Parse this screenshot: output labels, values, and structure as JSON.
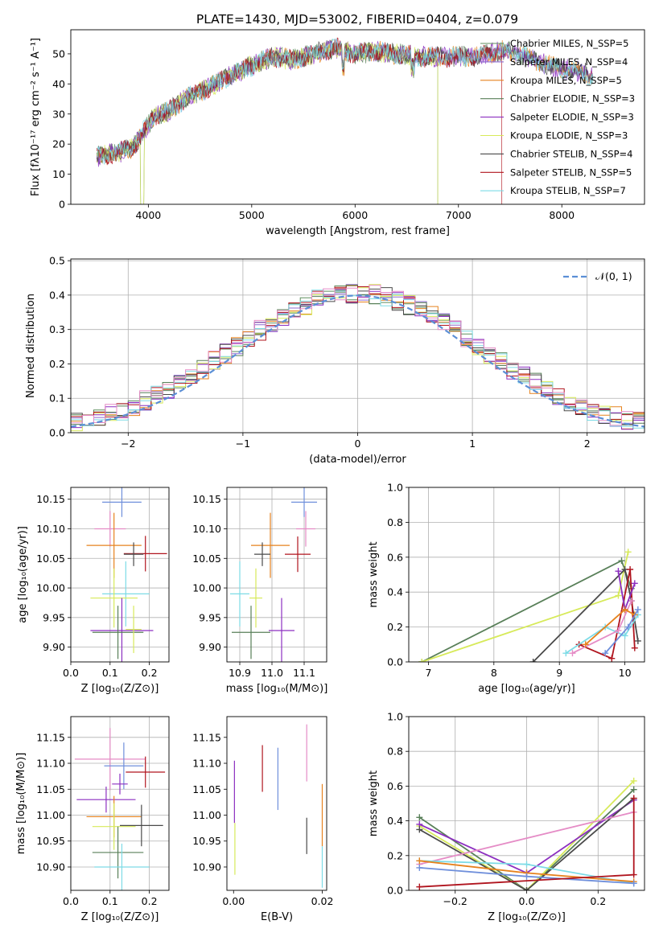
{
  "figure_title": "PLATE=1430, MJD=53002, FIBERID=0404, z=0.079",
  "colors": {
    "cM": "#5f8f5f",
    "sM": "#8d6bd0",
    "kM": "#e6821e",
    "cE": "#587f58",
    "sE": "#8c2fc0",
    "kE": "#d7ea5a",
    "cS": "#4a4a4a",
    "sS": "#b0141e",
    "kS": "#7ddbe6",
    "blue": "#6f8fdb",
    "pink": "#e58cc6",
    "gaussian": "#5b8fd6"
  },
  "chart_data": [
    {
      "type": "line",
      "id": "spectrum",
      "xlabel": "wavelength [Angstrom, rest frame]",
      "ylabel": "Flux [fλ10⁻¹⁷ erg cm⁻² s⁻¹ A⁻¹]",
      "xlim": [
        3250,
        8800
      ],
      "ylim": [
        0,
        58
      ],
      "xticks": [
        4000,
        5000,
        6000,
        7000,
        8000
      ],
      "yticks": [
        0,
        10,
        20,
        30,
        40,
        50
      ],
      "grid": false,
      "legend": "top-right",
      "continuum": {
        "x": [
          3500,
          3700,
          3850,
          3950,
          4050,
          4200,
          4400,
          4600,
          4800,
          5000,
          5200,
          5400,
          5600,
          5800,
          6000,
          6200,
          6400,
          6600,
          6800,
          7000,
          7200,
          7400,
          7600,
          7800,
          8000,
          8200,
          8400
        ],
        "y": [
          16,
          17,
          19,
          24,
          29,
          31,
          36,
          39,
          43,
          46,
          49,
          48,
          50,
          52,
          50,
          51,
          50,
          49,
          49,
          49,
          49,
          51,
          50,
          47,
          45,
          44,
          41
        ]
      },
      "series": [
        {
          "name": "Chabrier MILES, N_SSP=5",
          "color": "cM"
        },
        {
          "name": "Salpeter MILES, N_SSP=4",
          "color": "sM"
        },
        {
          "name": "Kroupa MILES, N_SSP=5",
          "color": "kM"
        },
        {
          "name": "Chabrier ELODIE, N_SSP=3",
          "color": "cE"
        },
        {
          "name": "Salpeter ELODIE, N_SSP=3",
          "color": "sE"
        },
        {
          "name": "Kroupa ELODIE, N_SSP=3",
          "color": "kE"
        },
        {
          "name": "Chabrier STELIB, N_SSP=4",
          "color": "cS"
        },
        {
          "name": "Salpeter STELIB, N_SSP=5",
          "color": "sS"
        },
        {
          "name": "Kroupa STELIB, N_SSP=7",
          "color": "kS"
        }
      ]
    },
    {
      "type": "histogram",
      "id": "residuals",
      "xlabel": "(data-model)/error",
      "ylabel": "Normed distribution",
      "xlim": [
        -2.5,
        2.5
      ],
      "ylim": [
        0,
        0.505
      ],
      "xticks": [
        -2,
        -1,
        0,
        1,
        2
      ],
      "yticks": [
        0.0,
        0.1,
        0.2,
        0.3,
        0.4,
        0.5
      ],
      "grid": true,
      "legend": "top-right",
      "legend_label": "𝒩(0, 1)",
      "bin_width": 0.1
    },
    {
      "type": "errorbar",
      "id": "age_vs_Z",
      "xlabel": "Z [log₁₀(Z/Z⊙)]",
      "ylabel": "age  [log₁₀(age/yr)]",
      "xlim": [
        0.0,
        0.25
      ],
      "ylim": [
        9.875,
        10.17
      ],
      "xticks": [
        0.0,
        0.1,
        0.2
      ],
      "yticks": [
        9.9,
        9.95,
        10.0,
        10.05,
        10.1,
        10.15
      ],
      "grid": true,
      "points": [
        {
          "x": 0.13,
          "xerr": 0.05,
          "y": 10.145,
          "yerr": 0.025,
          "color": "blue"
        },
        {
          "x": 0.1,
          "xerr": 0.04,
          "y": 10.1,
          "yerr": 0.03,
          "color": "pink"
        },
        {
          "x": 0.11,
          "xerr": 0.07,
          "y": 10.072,
          "yerr": 0.055,
          "color": "kM"
        },
        {
          "x": 0.19,
          "xerr": 0.055,
          "y": 10.058,
          "yerr": 0.03,
          "color": "sS"
        },
        {
          "x": 0.16,
          "xerr": 0.025,
          "y": 10.057,
          "yerr": 0.02,
          "color": "cS"
        },
        {
          "x": 0.14,
          "xerr": 0.06,
          "y": 9.99,
          "yerr": 0.055,
          "color": "kS"
        },
        {
          "x": 0.11,
          "xerr": 0.06,
          "y": 9.983,
          "yerr": 0.05,
          "color": "kE"
        },
        {
          "x": 0.13,
          "xerr": 0.08,
          "y": 9.928,
          "yerr": 0.055,
          "color": "sE"
        },
        {
          "x": 0.12,
          "xerr": 0.065,
          "y": 9.925,
          "yerr": 0.045,
          "color": "cE"
        },
        {
          "x": 0.16,
          "xerr": 0.02,
          "y": 9.93,
          "yerr": 0.04,
          "color": "kE"
        }
      ]
    },
    {
      "type": "errorbar",
      "id": "age_vs_mass",
      "xlabel": "mass [log₁₀(M/M⊙)]",
      "ylabel": "",
      "xlim": [
        10.86,
        11.17
      ],
      "ylim": [
        9.875,
        10.17
      ],
      "xticks": [
        10.9,
        11.0,
        11.1
      ],
      "yticks": [
        9.9,
        9.95,
        10.0,
        10.05,
        10.1,
        10.15
      ],
      "grid": true,
      "points": [
        {
          "x": 11.1,
          "xerr": 0.04,
          "y": 10.145,
          "yerr": 0.025,
          "color": "blue"
        },
        {
          "x": 11.105,
          "xerr": 0.03,
          "y": 10.1,
          "yerr": 0.03,
          "color": "pink"
        },
        {
          "x": 10.995,
          "xerr": 0.06,
          "y": 10.072,
          "yerr": 0.055,
          "color": "kM"
        },
        {
          "x": 11.08,
          "xerr": 0.04,
          "y": 10.057,
          "yerr": 0.03,
          "color": "sS"
        },
        {
          "x": 10.97,
          "xerr": 0.025,
          "y": 10.057,
          "yerr": 0.02,
          "color": "cS"
        },
        {
          "x": 10.9,
          "xerr": 0.03,
          "y": 9.99,
          "yerr": 0.055,
          "color": "kS"
        },
        {
          "x": 10.95,
          "xerr": 0.02,
          "y": 9.983,
          "yerr": 0.05,
          "color": "kE"
        },
        {
          "x": 11.03,
          "xerr": 0.04,
          "y": 9.928,
          "yerr": 0.055,
          "color": "sE"
        },
        {
          "x": 10.935,
          "xerr": 0.06,
          "y": 9.925,
          "yerr": 0.045,
          "color": "cE"
        }
      ]
    },
    {
      "type": "line",
      "id": "mass_weight_vs_age",
      "xlabel": "age  [log₁₀(age/yr)]",
      "ylabel": "mass weight",
      "xlim": [
        6.7,
        10.3
      ],
      "ylim": [
        0,
        1
      ],
      "xticks": [
        7,
        8,
        9,
        10
      ],
      "yticks": [
        0.0,
        0.2,
        0.4,
        0.6,
        0.8,
        1.0
      ],
      "grid": true,
      "series": [
        {
          "color": "cE",
          "x": [
            6.9,
            9.95,
            10.1
          ],
          "y": [
            0.0,
            0.58,
            0.42
          ]
        },
        {
          "color": "kE",
          "x": [
            6.9,
            9.9,
            10.05
          ],
          "y": [
            0.0,
            0.38,
            0.63
          ]
        },
        {
          "color": "cS",
          "x": [
            8.6,
            10.0,
            10.1,
            10.2
          ],
          "y": [
            0.0,
            0.53,
            0.35,
            0.12
          ]
        },
        {
          "color": "sS",
          "x": [
            9.3,
            9.8,
            10.08,
            10.15
          ],
          "y": [
            0.1,
            0.02,
            0.53,
            0.08
          ]
        },
        {
          "color": "kS",
          "x": [
            9.1,
            9.7,
            10.0,
            10.2
          ],
          "y": [
            0.05,
            0.2,
            0.15,
            0.27
          ]
        },
        {
          "color": "pink",
          "x": [
            9.2,
            9.9,
            10.1
          ],
          "y": [
            0.05,
            0.18,
            0.35
          ]
        },
        {
          "color": "sE",
          "x": [
            9.9,
            10.0,
            10.15
          ],
          "y": [
            0.52,
            0.3,
            0.45
          ]
        },
        {
          "color": "kM",
          "x": [
            9.4,
            10.0,
            10.15
          ],
          "y": [
            0.1,
            0.3,
            0.27
          ]
        },
        {
          "color": "blue",
          "x": [
            9.7,
            10.05,
            10.2
          ],
          "y": [
            0.05,
            0.2,
            0.3
          ]
        }
      ]
    },
    {
      "type": "errorbar",
      "id": "mass_vs_Z",
      "xlabel": "Z [log₁₀(Z/Z⊙)]",
      "ylabel": "mass [log₁₀(M/M⊙)]",
      "xlim": [
        0.0,
        0.25
      ],
      "ylim": [
        10.855,
        11.19
      ],
      "xticks": [
        0.0,
        0.1,
        0.2
      ],
      "yticks": [
        10.9,
        10.95,
        11.0,
        11.05,
        11.1,
        11.15
      ],
      "grid": true,
      "points": [
        {
          "x": 0.1,
          "xerr": 0.09,
          "y": 11.108,
          "yerr": 0.06,
          "color": "pink"
        },
        {
          "x": 0.135,
          "xerr": 0.05,
          "y": 11.095,
          "yerr": 0.045,
          "color": "blue"
        },
        {
          "x": 0.19,
          "xerr": 0.05,
          "y": 11.083,
          "yerr": 0.03,
          "color": "sS"
        },
        {
          "x": 0.125,
          "xerr": 0.02,
          "y": 11.06,
          "yerr": 0.02,
          "color": "sE"
        },
        {
          "x": 0.09,
          "xerr": 0.075,
          "y": 11.03,
          "yerr": 0.025,
          "color": "sE"
        },
        {
          "x": 0.11,
          "xerr": 0.07,
          "y": 10.997,
          "yerr": 0.04,
          "color": "kM"
        },
        {
          "x": 0.18,
          "xerr": 0.055,
          "y": 10.98,
          "yerr": 0.04,
          "color": "cS"
        },
        {
          "x": 0.11,
          "xerr": 0.055,
          "y": 10.978,
          "yerr": 0.045,
          "color": "kE"
        },
        {
          "x": 0.12,
          "xerr": 0.065,
          "y": 10.928,
          "yerr": 0.05,
          "color": "cE"
        },
        {
          "x": 0.13,
          "xerr": 0.07,
          "y": 10.9,
          "yerr": 0.045,
          "color": "kS"
        }
      ]
    },
    {
      "type": "errorbar",
      "id": "mass_vs_EBV",
      "xlabel": "E(B-V)",
      "ylabel": "",
      "xlim": [
        -0.0015,
        0.021
      ],
      "ylim": [
        10.855,
        11.19
      ],
      "xticks": [
        0.0,
        0.02
      ],
      "yticks": [
        10.9,
        10.95,
        11.0,
        11.05,
        11.1,
        11.15
      ],
      "grid": false,
      "points": [
        {
          "x": 0.0002,
          "y": 11.045,
          "yerr": 0.06,
          "color": "sE"
        },
        {
          "x": 0.0003,
          "y": 10.935,
          "yerr": 0.05,
          "color": "kE"
        },
        {
          "x": 0.0065,
          "y": 11.09,
          "yerr": 0.045,
          "color": "sS"
        },
        {
          "x": 0.01,
          "y": 11.07,
          "yerr": 0.06,
          "color": "blue"
        },
        {
          "x": 0.0165,
          "y": 11.12,
          "yerr": 0.055,
          "color": "pink"
        },
        {
          "x": 0.0165,
          "y": 10.96,
          "yerr": 0.035,
          "color": "cS"
        },
        {
          "x": 0.02,
          "y": 11.0,
          "yerr": 0.06,
          "color": "kM"
        },
        {
          "x": 0.02,
          "y": 10.9,
          "yerr": 0.04,
          "color": "kS"
        }
      ]
    },
    {
      "type": "line",
      "id": "mass_weight_vs_Z",
      "xlabel": "Z [log₁₀(Z/Z⊙)]",
      "ylabel": "mass weight",
      "xlim": [
        -0.33,
        0.33
      ],
      "ylim": [
        0,
        1
      ],
      "xticks": [
        -0.2,
        0.0,
        0.2
      ],
      "yticks": [
        0.0,
        0.2,
        0.4,
        0.6,
        0.8,
        1.0
      ],
      "grid": true,
      "series": [
        {
          "color": "cE",
          "x": [
            -0.3,
            0.0,
            0.3
          ],
          "y": [
            0.42,
            0.0,
            0.58
          ]
        },
        {
          "color": "kE",
          "x": [
            -0.3,
            0.0,
            0.3
          ],
          "y": [
            0.37,
            0.0,
            0.63
          ]
        },
        {
          "color": "sE",
          "x": [
            -0.3,
            0.0,
            0.3
          ],
          "y": [
            0.38,
            0.1,
            0.52
          ]
        },
        {
          "color": "cS",
          "x": [
            -0.3,
            0.0,
            0.3
          ],
          "y": [
            0.35,
            0.0,
            0.53
          ]
        },
        {
          "color": "pink",
          "x": [
            -0.3,
            0.3
          ],
          "y": [
            0.15,
            0.45
          ]
        },
        {
          "color": "kS",
          "x": [
            -0.3,
            0.0,
            0.3
          ],
          "y": [
            0.17,
            0.15,
            0.04
          ]
        },
        {
          "color": "kM",
          "x": [
            -0.3,
            0.0,
            0.3
          ],
          "y": [
            0.17,
            0.1,
            0.05
          ]
        },
        {
          "color": "blue",
          "x": [
            -0.3,
            0.0,
            0.3
          ],
          "y": [
            0.13,
            0.08,
            0.04
          ]
        },
        {
          "color": "sS",
          "x": [
            -0.3,
            0.3,
            0.3
          ],
          "y": [
            0.02,
            0.09,
            0.53
          ]
        }
      ]
    }
  ]
}
